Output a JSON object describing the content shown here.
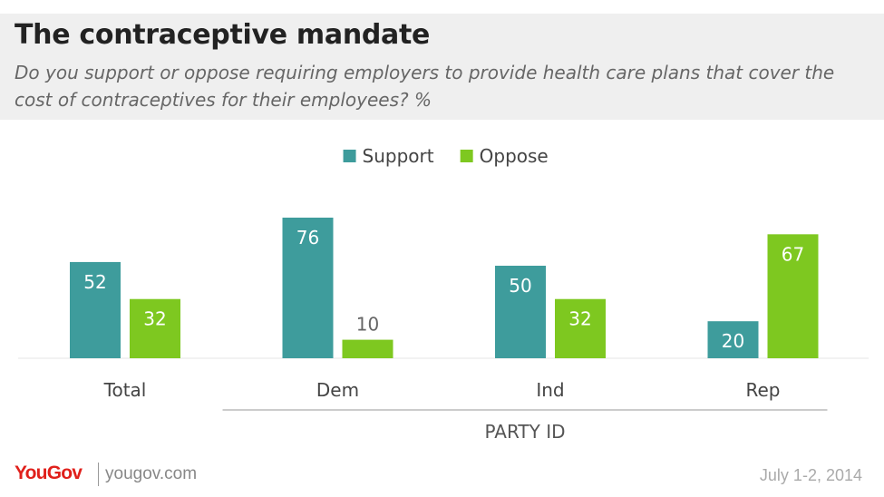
{
  "header": {
    "title": "The contraceptive mandate",
    "subtitle": "Do you support or oppose requiring employers to provide health care plans that cover the cost of contraceptives for their employees? %"
  },
  "chart_data": {
    "type": "bar",
    "categories": [
      "Total",
      "Dem",
      "Ind",
      "Rep"
    ],
    "series": [
      {
        "name": "Support",
        "values": [
          52,
          76,
          50,
          20
        ],
        "color": "#3e9c9c"
      },
      {
        "name": "Oppose",
        "values": [
          32,
          10,
          32,
          67
        ],
        "color": "#7ec820"
      }
    ],
    "ylim": [
      0,
      80
    ],
    "grid": false,
    "legend": "top-center",
    "group_label": {
      "text": "PARTY ID",
      "categories": [
        "Dem",
        "Ind",
        "Rep"
      ]
    },
    "label_colors": {
      "inside": "#ffffff",
      "outside": "#666666"
    }
  },
  "footer": {
    "logo": "YouGov",
    "site": "yougov.com",
    "date": "July 1-2, 2014"
  }
}
